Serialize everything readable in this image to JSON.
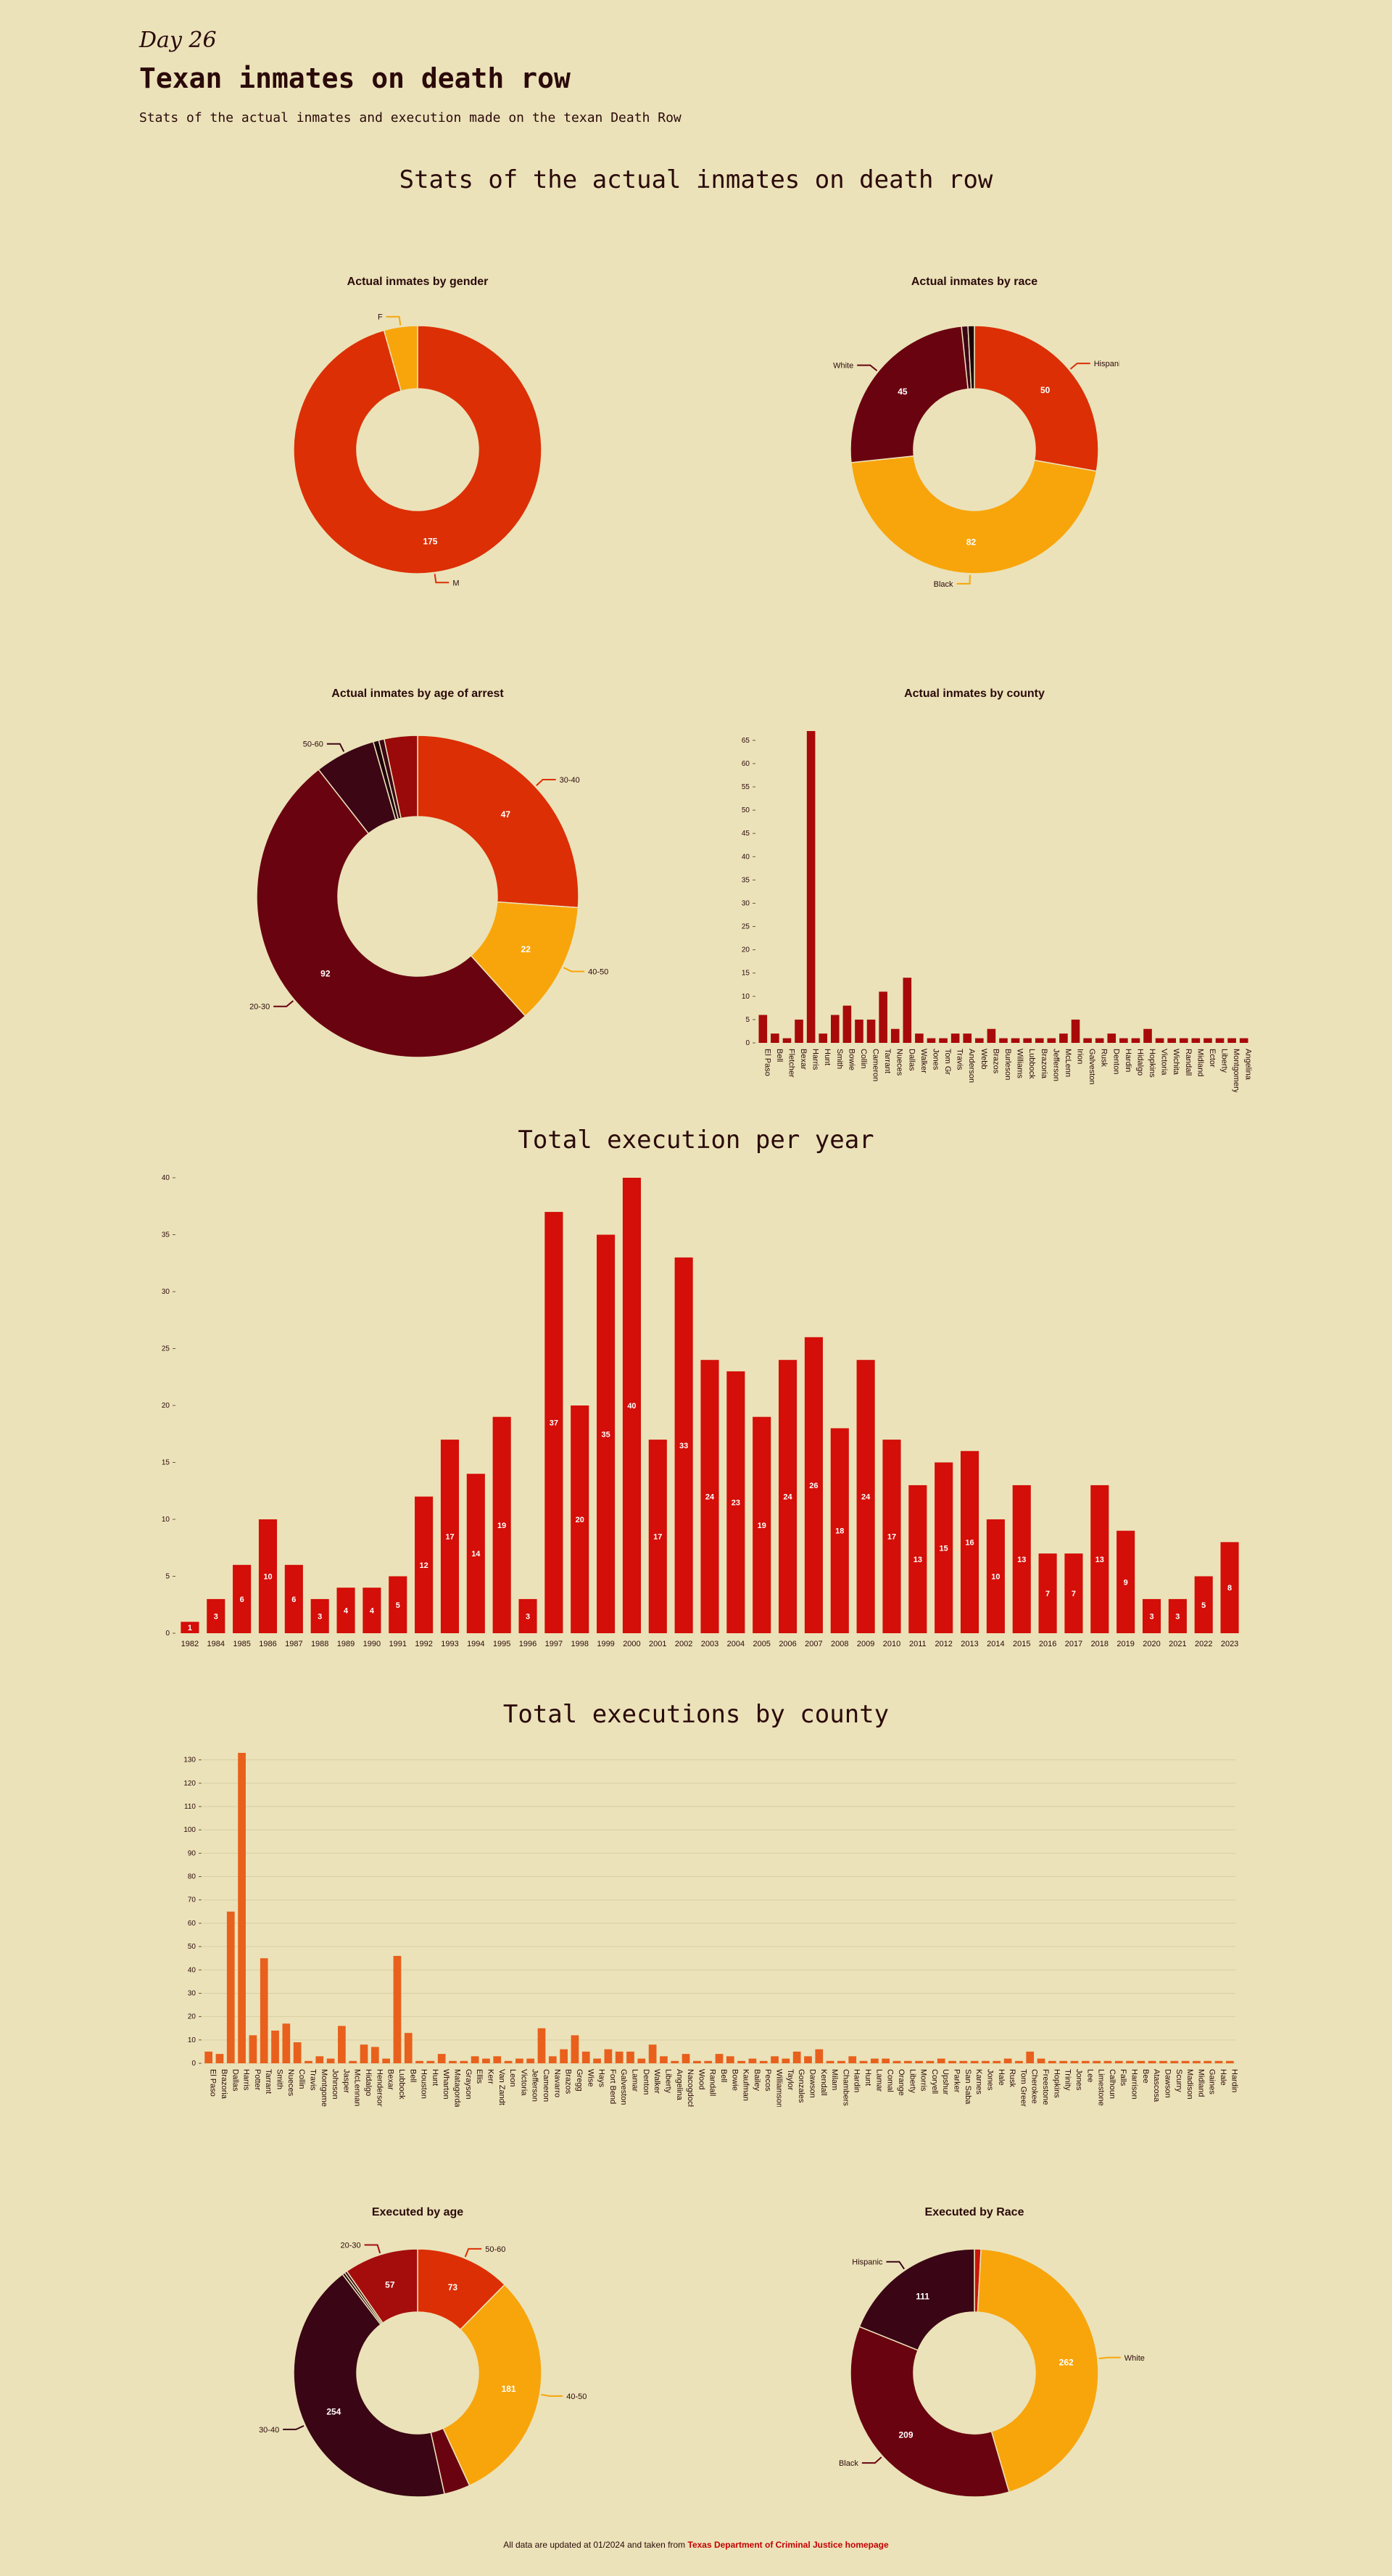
{
  "header": {
    "day": "Day 26",
    "title": "Texan inmates on death row",
    "subtitle": "Stats of the actual inmates and execution made on the texan Death Row"
  },
  "sections": {
    "actual": "Stats of the actual inmates on death row",
    "per_year": "Total execution per year",
    "by_county": "Total executions by county"
  },
  "footer": {
    "text": "All data are updated at 01/2024 and taken from",
    "link": "Texas Department of Criminal Justice homepage"
  },
  "colors": {
    "bg": "#ebe2b9",
    "red": "#d40e08",
    "orange": "#e8601c",
    "darkred": "#a50f0f"
  },
  "chart_data": [
    {
      "id": "gender",
      "type": "pie",
      "title": "Actual inmates by gender",
      "slices": [
        {
          "label": "M",
          "value": 175,
          "color": "#dc2f05",
          "show_value": true,
          "show_label": true
        },
        {
          "label": "F",
          "value": 8,
          "color": "#f8a50b",
          "show_value": false,
          "show_label": true
        }
      ]
    },
    {
      "id": "race",
      "type": "pie",
      "title": "Actual inmates by race",
      "slices": [
        {
          "label": "Hispanic",
          "value": 50,
          "color": "#dc2f05",
          "show_value": true,
          "show_label": true
        },
        {
          "label": "Black",
          "value": 82,
          "color": "#f8a50b",
          "show_value": true,
          "show_label": true
        },
        {
          "label": "White",
          "value": 45,
          "color": "#6a0310",
          "show_value": true,
          "show_label": true
        },
        {
          "label": "Other",
          "value": 1.5,
          "color": "#3c0615",
          "show_value": false,
          "show_label": false
        },
        {
          "label": "Other",
          "value": 1.5,
          "color": "#1d0308",
          "show_value": false,
          "show_label": false
        }
      ]
    },
    {
      "id": "age_arrest",
      "type": "pie",
      "title": "Actual inmates by age of arrest",
      "slices": [
        {
          "label": "30-40",
          "value": 47,
          "color": "#dc2f05",
          "show_value": true,
          "show_label": true
        },
        {
          "label": "40-50",
          "value": 22,
          "color": "#f8a50b",
          "show_value": true,
          "show_label": true
        },
        {
          "label": "20-30",
          "value": 92,
          "color": "#6a0310",
          "show_value": true,
          "show_label": true
        },
        {
          "label": "50-60",
          "value": 11,
          "color": "#3c0615",
          "show_value": false,
          "show_label": true
        },
        {
          "label": "Other",
          "value": 1,
          "color": "#1d0308",
          "show_value": false,
          "show_label": false
        },
        {
          "label": "Other",
          "value": 1,
          "color": "#3c0615",
          "show_value": false,
          "show_label": false
        },
        {
          "label": "Other",
          "value": 6,
          "color": "#9a0a0a",
          "show_value": false,
          "show_label": false
        }
      ]
    },
    {
      "id": "county_actual",
      "type": "bar",
      "title": "Actual inmates by county",
      "categories": [
        "El Paso",
        "Bell",
        "Fletcher",
        "Bexar",
        "Harris",
        "Hunt",
        "Smith",
        "Bowie",
        "Collin",
        "Cameron",
        "Tarrant",
        "Nueces",
        "Dallas",
        "Walker",
        "Jones",
        "Tom Gr",
        "Travis",
        "Anderson",
        "Webb",
        "Brazos",
        "Burleson",
        "Williams",
        "Lubbock",
        "Brazoria",
        "Jefferson",
        "McLenn",
        "Irion",
        "Galveston",
        "Rusk",
        "Denton",
        "Hardin",
        "Hidalgo",
        "Hopkins",
        "Victoria",
        "Wichita",
        "Randall",
        "Midland",
        "Ector",
        "Liberty",
        "Montgomery",
        "Angelina"
      ],
      "values": [
        6,
        2,
        1,
        5,
        67,
        2,
        6,
        8,
        5,
        5,
        11,
        3,
        14,
        2,
        1,
        1,
        2,
        2,
        1,
        3,
        1,
        1,
        1,
        1,
        1,
        2,
        5,
        1,
        1,
        2,
        1,
        1,
        3,
        1,
        1,
        1,
        1,
        1,
        1,
        1,
        1
      ],
      "ylim": [
        0,
        67
      ],
      "yticks": [
        0,
        5,
        10,
        15,
        20,
        25,
        30,
        35,
        40,
        45,
        50,
        55,
        60,
        65
      ]
    },
    {
      "id": "per_year",
      "type": "bar",
      "title": "",
      "categories": [
        "1982",
        "1984",
        "1985",
        "1986",
        "1987",
        "1988",
        "1989",
        "1990",
        "1991",
        "1992",
        "1993",
        "1994",
        "1995",
        "1996",
        "1997",
        "1998",
        "1999",
        "2000",
        "2001",
        "2002",
        "2003",
        "2004",
        "2005",
        "2006",
        "2007",
        "2008",
        "2009",
        "2010",
        "2011",
        "2012",
        "2013",
        "2014",
        "2015",
        "2016",
        "2017",
        "2018",
        "2019",
        "2020",
        "2021",
        "2022",
        "2023"
      ],
      "values": [
        1,
        3,
        6,
        10,
        6,
        3,
        4,
        4,
        5,
        12,
        17,
        14,
        19,
        3,
        37,
        20,
        35,
        40,
        17,
        33,
        24,
        23,
        19,
        24,
        26,
        18,
        24,
        17,
        13,
        15,
        16,
        10,
        13,
        7,
        7,
        13,
        9,
        3,
        3,
        5,
        8
      ],
      "ylim": [
        0,
        40
      ],
      "yticks": [
        0,
        5,
        10,
        15,
        20,
        25,
        30,
        35,
        40
      ]
    },
    {
      "id": "exec_county",
      "type": "bar",
      "title": "",
      "categories": [
        "El Paso",
        "Brazoria",
        "Dallas",
        "Harris",
        "Potter",
        "Tarrant",
        "Smith",
        "Nueces",
        "Collin",
        "Travis",
        "Montgomery",
        "Johnson",
        "Jasper",
        "McLennan",
        "Hidalgo",
        "Henderson",
        "Bexar",
        "Lubbock",
        "Bell",
        "Houston",
        "Hunt",
        "Wharton",
        "Matagorda",
        "Grayson",
        "Ellis",
        "Kerr",
        "Van Zandt",
        "Leon",
        "Victoria",
        "Jefferson",
        "Cameron",
        "Navarro",
        "Brazos",
        "Gregg",
        "Wise",
        "Hays",
        "Fort Bend",
        "Galveston",
        "Lamar",
        "Denton",
        "Walker",
        "Liberty",
        "Angelina",
        "Nacogdoches",
        "Wood",
        "Randall",
        "Bell",
        "Bowie",
        "Kaufman",
        "Bailey",
        "Pecos",
        "Williamson",
        "Taylor",
        "Gonzales",
        "Dawson",
        "Kendall",
        "Milam",
        "Chambers",
        "Hardin",
        "Hunt",
        "Lamar",
        "Comal",
        "Orange",
        "Liberty",
        "Morris",
        "Coryell",
        "Upshur",
        "Parker",
        "San Saba",
        "Karnes",
        "Jones",
        "Hale",
        "Rusk",
        "Tom Green",
        "Cherokee",
        "Freestone",
        "Hopkins",
        "Trinity",
        "Jones",
        "Lee",
        "Limestone",
        "Calhoun",
        "Falls",
        "Harrison",
        "Bee",
        "Atascosa",
        "Dawson",
        "Scurry",
        "Madison",
        "Midland",
        "Gaines",
        "Hale",
        "Hardin"
      ],
      "values": [
        5,
        4,
        65,
        133,
        12,
        45,
        14,
        17,
        9,
        1,
        3,
        2,
        16,
        1,
        8,
        7,
        2,
        46,
        13,
        1,
        1,
        4,
        1,
        1,
        3,
        2,
        3,
        1,
        2,
        2,
        15,
        3,
        6,
        12,
        5,
        2,
        6,
        5,
        5,
        2,
        8,
        3,
        1,
        4,
        1,
        1,
        4,
        3,
        1,
        2,
        1,
        3,
        2,
        5,
        3,
        6,
        1,
        1,
        3,
        1,
        2,
        2,
        1,
        1,
        1,
        1,
        2,
        1,
        1,
        1,
        1,
        1,
        2,
        1,
        5,
        2,
        1,
        1,
        1,
        1,
        1,
        1,
        1,
        1,
        1,
        1,
        1,
        1,
        1,
        1,
        1,
        1,
        1
      ],
      "ylim": [
        0,
        133
      ],
      "yticks": [
        0,
        10,
        20,
        30,
        40,
        50,
        60,
        70,
        80,
        90,
        100,
        110,
        120,
        130
      ]
    },
    {
      "id": "exec_age",
      "type": "pie",
      "title": "Executed by age",
      "slices": [
        {
          "label": "50-60",
          "value": 73,
          "color": "#dc2f05",
          "show_value": true,
          "show_label": true
        },
        {
          "label": "40-50",
          "value": 181,
          "color": "#f8a50b",
          "show_value": true,
          "show_label": true
        },
        {
          "label": "Other",
          "value": 20,
          "color": "#6a0310",
          "show_value": false,
          "show_label": false
        },
        {
          "label": "30-40",
          "value": 254,
          "color": "#3a0514",
          "show_value": true,
          "show_label": true
        },
        {
          "label": "Other",
          "value": 2,
          "color": "#1d0308",
          "show_value": false,
          "show_label": false
        },
        {
          "label": "Other",
          "value": 2,
          "color": "#3c0615",
          "show_value": false,
          "show_label": false
        },
        {
          "label": "20-30",
          "value": 57,
          "color": "#a50d0d",
          "show_value": true,
          "show_label": true
        }
      ]
    },
    {
      "id": "exec_race",
      "type": "pie",
      "title": "Executed by Race",
      "slices": [
        {
          "label": "Other",
          "value": 5,
          "color": "#c81508",
          "show_value": false,
          "show_label": false
        },
        {
          "label": "White",
          "value": 262,
          "color": "#f8a50b",
          "show_value": true,
          "show_label": true
        },
        {
          "label": "Black",
          "value": 209,
          "color": "#6a0310",
          "show_value": true,
          "show_label": true
        },
        {
          "label": "Hispanic",
          "value": 111,
          "color": "#3a0514",
          "show_value": true,
          "show_label": true
        }
      ]
    }
  ]
}
